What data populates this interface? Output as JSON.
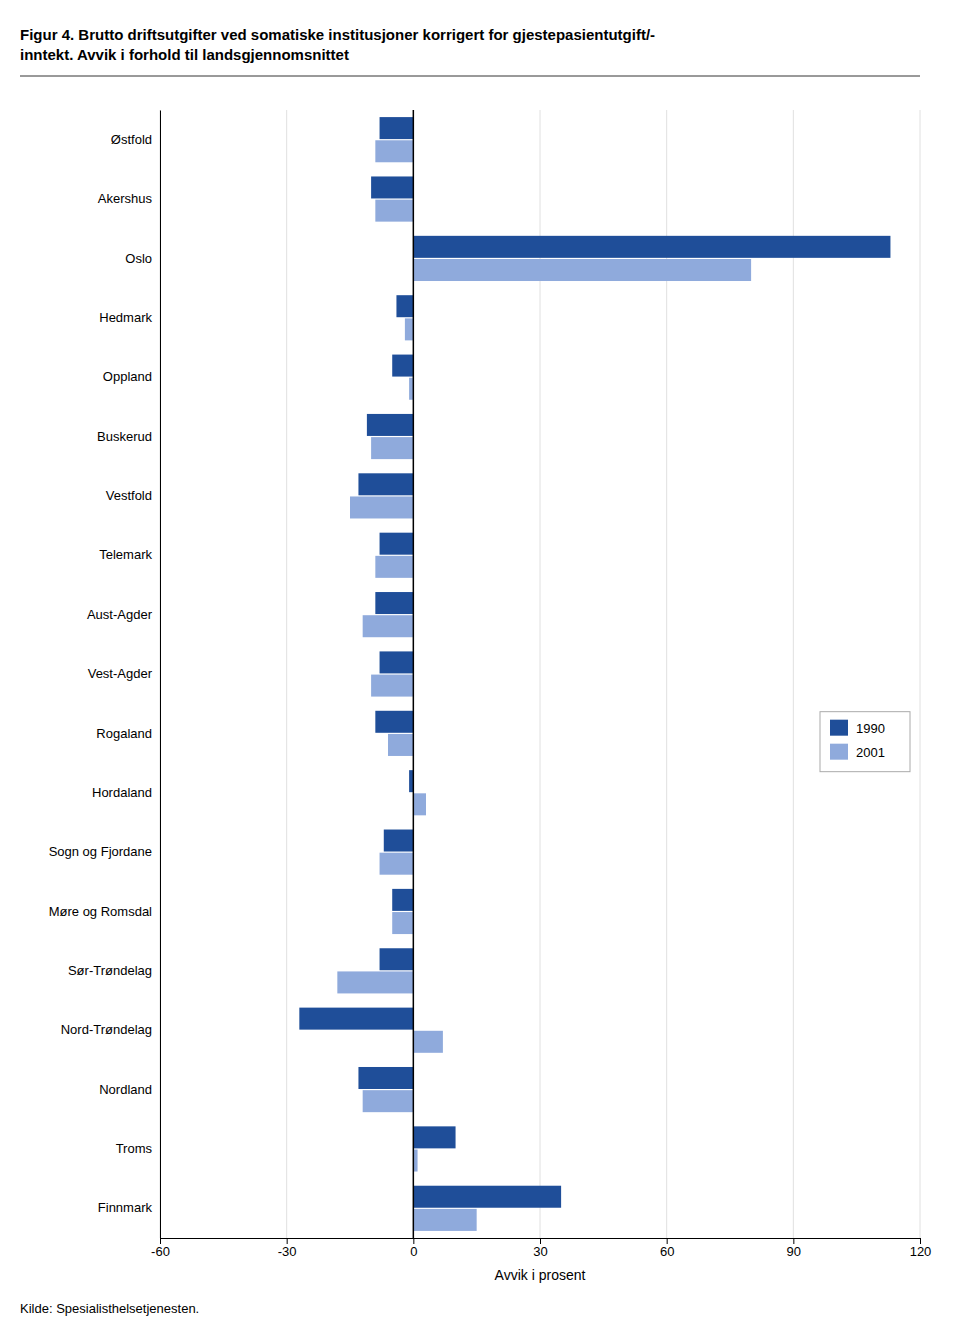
{
  "chart_data": {
    "type": "bar",
    "orientation": "horizontal",
    "title": [
      "Figur 4. Brutto driftsutgifter ved somatiske institusjoner korrigert for gjestepasientutgift/-",
      "inntekt. Avvik i forhold til landsgjennomsnittet"
    ],
    "x_label": "Avvik i prosent",
    "annotations": [
      "Kilde: Spesialisthelsetjenesten."
    ],
    "categories": [
      "Østfold",
      "Akershus",
      "Oslo",
      "Hedmark",
      "Oppland",
      "Buskerud",
      "Vestfold",
      "Telemark",
      "Aust-Agder",
      "Vest-Agder",
      "Rogaland",
      "Hordaland",
      "Sogn og Fjordane",
      "Møre og Romsdal",
      "Sør-Trøndelag",
      "Nord-Trøndelag",
      "Nordland",
      "Troms",
      "Finnmark"
    ],
    "series": [
      {
        "name": "1990",
        "color": "#1F4E99",
        "values": [
          -8,
          -10,
          113,
          -4,
          -5,
          -11,
          -13,
          -8,
          -9,
          -8,
          -9,
          -1,
          -7,
          -5,
          -8,
          -27,
          -13,
          10,
          35
        ]
      },
      {
        "name": "2001",
        "color": "#8FAADC",
        "values": [
          -9,
          -9,
          80,
          -2,
          -1,
          -10,
          -15,
          -9,
          -12,
          -10,
          -6,
          3,
          -8,
          -5,
          -18,
          7,
          -12,
          1,
          15
        ]
      }
    ],
    "xlim": [
      -60,
      120
    ],
    "xticks": [
      -60,
      -30,
      0,
      30,
      60,
      90,
      120
    ],
    "grid": true,
    "legend": "right"
  }
}
